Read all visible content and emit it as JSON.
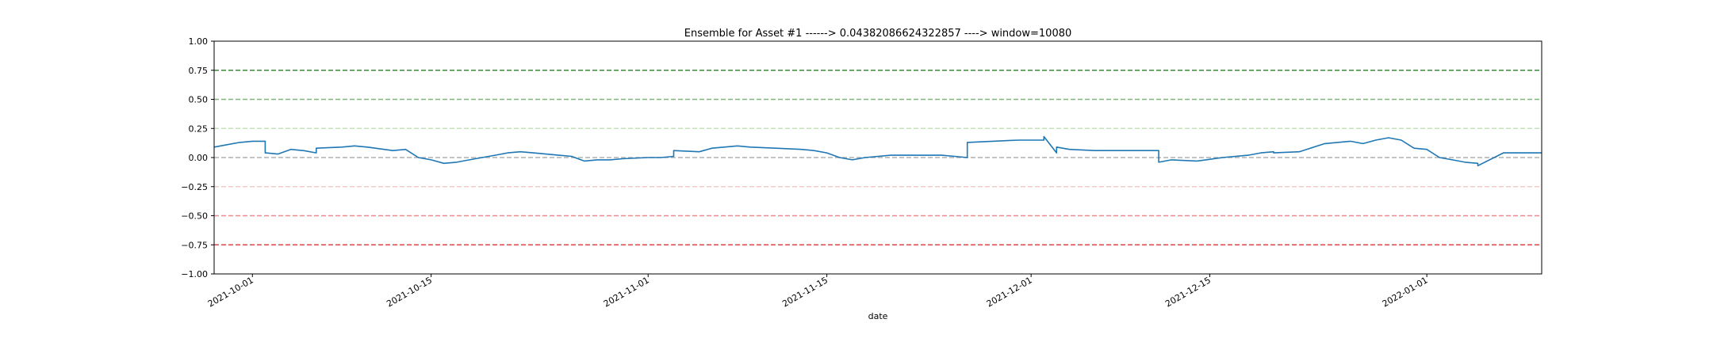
{
  "chart_data": {
    "type": "line",
    "title": "Ensemble for Asset #1 ------> 0.04382086624322857 ----> window=10080",
    "xlabel": "date",
    "ylabel": "",
    "xlim": [
      "2021-09-28",
      "2022-01-10"
    ],
    "ylim": [
      -1.0,
      1.0
    ],
    "x_ticks": [
      "2021-10-01",
      "2021-10-15",
      "2021-11-01",
      "2021-11-15",
      "2021-12-01",
      "2021-12-15",
      "2022-01-01"
    ],
    "y_ticks": [
      "1.00",
      "0.75",
      "0.50",
      "0.25",
      "0.00",
      "−0.25",
      "−0.50",
      "−0.75",
      "−1.00"
    ],
    "grid": false,
    "reference_lines": [
      {
        "y": 0.75,
        "color": "#3a8a3a",
        "style": "dashed"
      },
      {
        "y": 0.5,
        "color": "#7bb77b",
        "style": "dashed"
      },
      {
        "y": 0.25,
        "color": "#c5e3b5",
        "style": "dashed"
      },
      {
        "y": 0.0,
        "color": "#b0b0b0",
        "style": "dashed"
      },
      {
        "y": -0.25,
        "color": "#f4c9c9",
        "style": "dashed"
      },
      {
        "y": -0.5,
        "color": "#ee8a8a",
        "style": "dashed"
      },
      {
        "y": -0.75,
        "color": "#e04545",
        "style": "dashed"
      }
    ],
    "series": [
      {
        "color": "#1f77b4",
        "x": [
          "2021-09-28",
          "2021-09-29",
          "2021-09-30",
          "2021-10-01",
          "2021-10-02",
          "2021-10-02",
          "2021-10-03",
          "2021-10-04",
          "2021-10-05",
          "2021-10-06",
          "2021-10-06",
          "2021-10-08",
          "2021-10-09",
          "2021-10-10",
          "2021-10-12",
          "2021-10-13",
          "2021-10-14",
          "2021-10-15",
          "2021-10-16",
          "2021-10-17",
          "2021-10-18",
          "2021-10-19",
          "2021-10-20",
          "2021-10-21",
          "2021-10-22",
          "2021-10-23",
          "2021-10-24",
          "2021-10-25",
          "2021-10-26",
          "2021-10-27",
          "2021-10-28",
          "2021-10-29",
          "2021-10-30",
          "2021-11-01",
          "2021-11-02",
          "2021-11-03",
          "2021-11-03",
          "2021-11-05",
          "2021-11-06",
          "2021-11-08",
          "2021-11-09",
          "2021-11-11",
          "2021-11-13",
          "2021-11-14",
          "2021-11-15",
          "2021-11-16",
          "2021-11-17",
          "2021-11-18",
          "2021-11-20",
          "2021-11-22",
          "2021-11-24",
          "2021-11-25",
          "2021-11-26",
          "2021-11-26",
          "2021-11-28",
          "2021-11-30",
          "2021-12-02",
          "2021-12-02",
          "2021-12-03",
          "2021-12-03",
          "2021-12-04",
          "2021-12-06",
          "2021-12-08",
          "2021-12-10",
          "2021-12-11",
          "2021-12-11",
          "2021-12-12",
          "2021-12-14",
          "2021-12-16",
          "2021-12-18",
          "2021-12-19",
          "2021-12-20",
          "2021-12-20",
          "2021-12-22",
          "2021-12-24",
          "2021-12-25",
          "2021-12-26",
          "2021-12-27",
          "2021-12-28",
          "2021-12-29",
          "2021-12-30",
          "2021-12-31",
          "2022-01-01",
          "2022-01-02",
          "2022-01-03",
          "2022-01-04",
          "2022-01-05",
          "2022-01-05",
          "2022-01-07",
          "2022-01-10"
        ],
        "y": [
          0.09,
          0.11,
          0.13,
          0.14,
          0.14,
          0.04,
          0.03,
          0.07,
          0.06,
          0.04,
          0.08,
          0.09,
          0.1,
          0.09,
          0.06,
          0.07,
          0.0,
          -0.02,
          -0.05,
          -0.04,
          -0.02,
          0.0,
          0.02,
          0.04,
          0.05,
          0.04,
          0.03,
          0.02,
          0.01,
          -0.03,
          -0.02,
          -0.02,
          -0.01,
          0.0,
          0.0,
          0.01,
          0.06,
          0.05,
          0.08,
          0.1,
          0.09,
          0.08,
          0.07,
          0.06,
          0.04,
          0.0,
          -0.02,
          0.0,
          0.02,
          0.02,
          0.02,
          0.01,
          0.0,
          0.13,
          0.14,
          0.15,
          0.15,
          0.18,
          0.04,
          0.09,
          0.07,
          0.06,
          0.06,
          0.06,
          0.06,
          -0.04,
          -0.02,
          -0.03,
          0.0,
          0.02,
          0.04,
          0.05,
          0.04,
          0.05,
          0.12,
          0.13,
          0.14,
          0.12,
          0.15,
          0.17,
          0.15,
          0.08,
          0.07,
          0.0,
          -0.02,
          -0.04,
          -0.05,
          -0.07,
          0.04,
          0.04
        ]
      }
    ]
  }
}
